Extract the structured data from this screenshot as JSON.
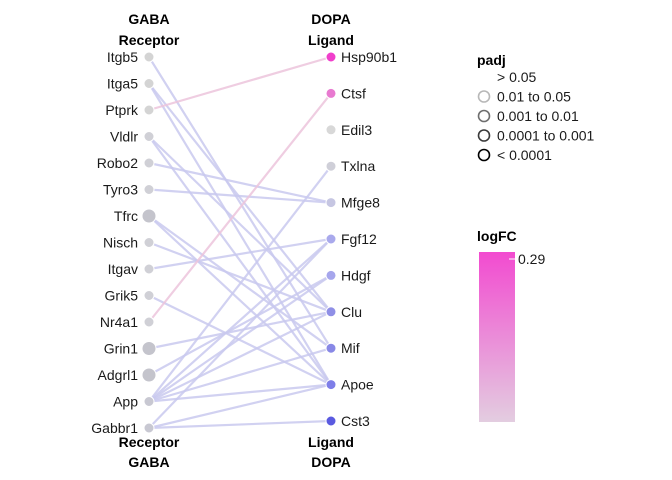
{
  "chart_data": {
    "type": "network",
    "left_header": {
      "line1": "GABA",
      "line2": "Receptor"
    },
    "right_header": {
      "line1": "DOPA",
      "line2": "Ligand"
    },
    "left_footer": {
      "line1": "Receptor",
      "line2": "GABA"
    },
    "right_footer": {
      "line1": "Ligand",
      "line2": "DOPA"
    },
    "receptors": [
      {
        "name": "Itgb5",
        "color": "#d4d4d4",
        "large": false
      },
      {
        "name": "Itga5",
        "color": "#d4d4d4",
        "large": false
      },
      {
        "name": "Ptprk",
        "color": "#d4d4d4",
        "large": false
      },
      {
        "name": "Vldlr",
        "color": "#d0d0d6",
        "large": false
      },
      {
        "name": "Robo2",
        "color": "#d0d0d6",
        "large": false
      },
      {
        "name": "Tyro3",
        "color": "#d0d0d6",
        "large": false
      },
      {
        "name": "Tfrc",
        "color": "#c4c4cc",
        "large": true
      },
      {
        "name": "Nisch",
        "color": "#d0d0d6",
        "large": false
      },
      {
        "name": "Itgav",
        "color": "#d0d0d6",
        "large": false
      },
      {
        "name": "Grik5",
        "color": "#d0d0d6",
        "large": false
      },
      {
        "name": "Nr4a1",
        "color": "#d0d0d6",
        "large": false
      },
      {
        "name": "Grin1",
        "color": "#c4c4cc",
        "large": true
      },
      {
        "name": "Adgrl1",
        "color": "#c4c4cc",
        "large": true
      },
      {
        "name": "App",
        "color": "#c8c8d2",
        "large": false
      },
      {
        "name": "Gabbr1",
        "color": "#c8c8d2",
        "large": false
      }
    ],
    "ligands": [
      {
        "name": "Hsp90b1",
        "color": "#f03fcb"
      },
      {
        "name": "Ctsf",
        "color": "#e87ad0"
      },
      {
        "name": "Edil3",
        "color": "#d8d8d8"
      },
      {
        "name": "Txlna",
        "color": "#cfcfd8"
      },
      {
        "name": "Mfge8",
        "color": "#c6c6e2"
      },
      {
        "name": "Fgf12",
        "color": "#a9a9ec"
      },
      {
        "name": "Hdgf",
        "color": "#a6a6ec"
      },
      {
        "name": "Clu",
        "color": "#8f8fe6"
      },
      {
        "name": "Mif",
        "color": "#8888e6"
      },
      {
        "name": "Apoe",
        "color": "#7e7ee8"
      },
      {
        "name": "Cst3",
        "color": "#5a5ae0"
      }
    ],
    "edges": [
      {
        "r": "Itgb5",
        "l": "Mif",
        "color": "#c9c9ee"
      },
      {
        "r": "Itga5",
        "l": "Clu",
        "color": "#c9c9ee"
      },
      {
        "r": "Itga5",
        "l": "Apoe",
        "color": "#c9c9ee"
      },
      {
        "r": "Ptprk",
        "l": "Hsp90b1",
        "color": "#ecc4dc"
      },
      {
        "r": "Vldlr",
        "l": "Clu",
        "color": "#c9c9ee"
      },
      {
        "r": "Vldlr",
        "l": "Apoe",
        "color": "#c9c9ee"
      },
      {
        "r": "Robo2",
        "l": "Mfge8",
        "color": "#c9c9ee"
      },
      {
        "r": "Tyro3",
        "l": "Mfge8",
        "color": "#c9c9ee"
      },
      {
        "r": "Tfrc",
        "l": "Mif",
        "color": "#c9c9ee"
      },
      {
        "r": "Tfrc",
        "l": "Apoe",
        "color": "#c9c9ee"
      },
      {
        "r": "Nisch",
        "l": "Clu",
        "color": "#c9c9ee"
      },
      {
        "r": "Itgav",
        "l": "Fgf12",
        "color": "#c9c9ee"
      },
      {
        "r": "Grik5",
        "l": "Apoe",
        "color": "#c9c9ee"
      },
      {
        "r": "Nr4a1",
        "l": "Ctsf",
        "color": "#ecc4dc"
      },
      {
        "r": "Grin1",
        "l": "Clu",
        "color": "#c9c9ee"
      },
      {
        "r": "Adgrl1",
        "l": "Hdgf",
        "color": "#c9c9ee"
      },
      {
        "r": "App",
        "l": "Txlna",
        "color": "#c9c9ee"
      },
      {
        "r": "App",
        "l": "Fgf12",
        "color": "#c9c9ee"
      },
      {
        "r": "App",
        "l": "Hdgf",
        "color": "#c9c9ee"
      },
      {
        "r": "App",
        "l": "Clu",
        "color": "#c9c9ee"
      },
      {
        "r": "App",
        "l": "Mif",
        "color": "#c9c9ee"
      },
      {
        "r": "App",
        "l": "Apoe",
        "color": "#c9c9ee"
      },
      {
        "r": "Gabbr1",
        "l": "Fgf12",
        "color": "#c9c9ee"
      },
      {
        "r": "Gabbr1",
        "l": "Apoe",
        "color": "#c9c9ee"
      },
      {
        "r": "Gabbr1",
        "l": "Cst3",
        "color": "#c9c9ee"
      }
    ],
    "legend_padj": {
      "title": "padj",
      "items": [
        {
          "label": "> 0.05",
          "stroke": "#ffffff"
        },
        {
          "label": "0.01 to 0.05",
          "stroke": "#b8b8b8"
        },
        {
          "label": "0.001 to 0.01",
          "stroke": "#6e6e6e"
        },
        {
          "label": "0.0001 to 0.001",
          "stroke": "#3a3a3a"
        },
        {
          "label": "< 0.0001",
          "stroke": "#000000"
        }
      ]
    },
    "legend_logfc": {
      "title": "logFC",
      "max_label": "0.29",
      "color_high": "#f24bd0",
      "color_low": "#e3cde0"
    }
  }
}
